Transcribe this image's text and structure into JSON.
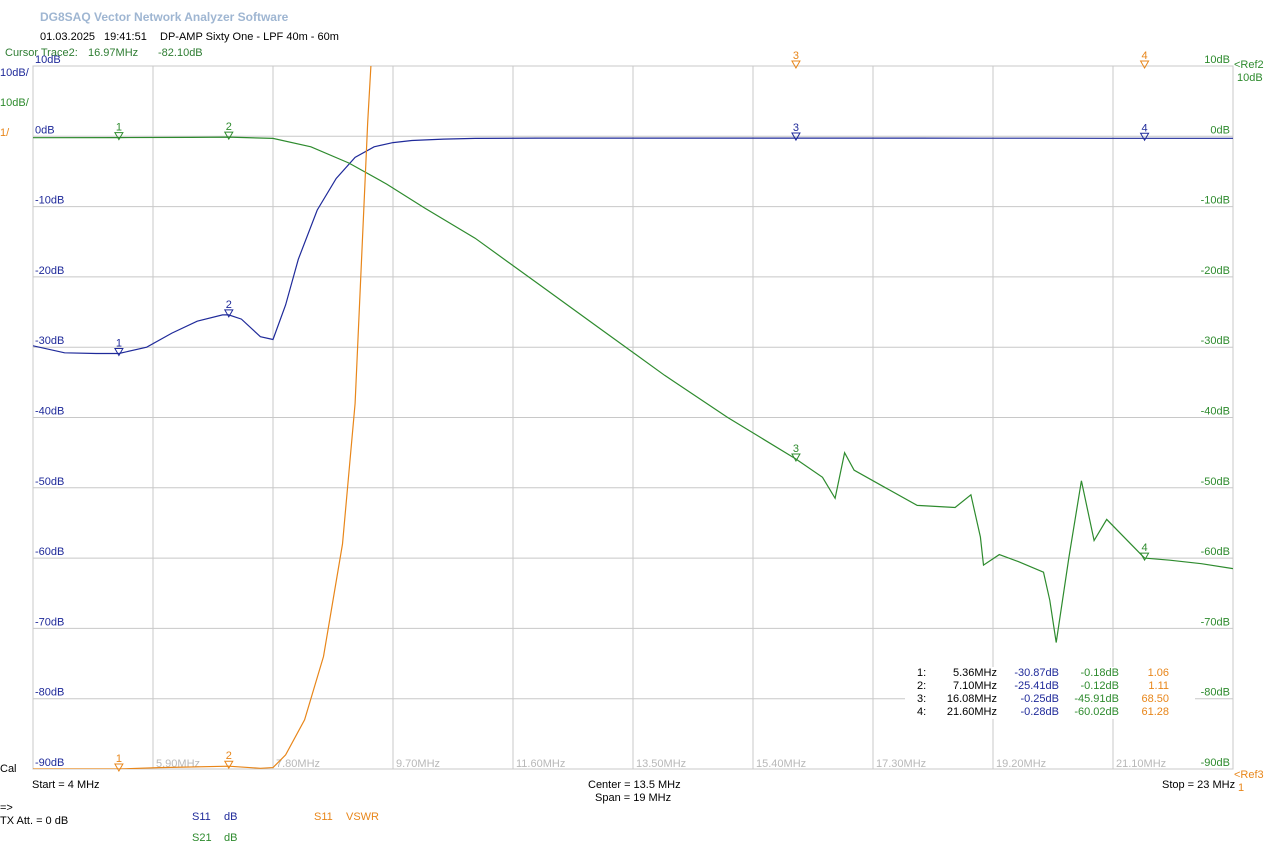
{
  "app": {
    "title": "DG8SAQ Vector Network Analyzer Software"
  },
  "header": {
    "date": "01.03.2025",
    "time": "19:41:51",
    "description": "DP-AMP Sixty One - LPF 40m - 60m"
  },
  "cursor": {
    "label": "Cursor Trace2:",
    "freq": "16.97MHz",
    "value": "-82.10dB"
  },
  "left_scale": {
    "s11_div": "10dB/",
    "s21_div": "10dB/",
    "vswr_div": "1/",
    "cal": "Cal"
  },
  "right_scale": {
    "ref2": "<Ref2",
    "ref2_div": "10dB",
    "ref3": "<Ref3",
    "ref3_val": "1"
  },
  "footer": {
    "start": "Start = 4 MHz",
    "center": "Center = 13.5 MHz",
    "span": "Span = 19 MHz",
    "stop": "Stop = 23 MHz",
    "arrow": "=>",
    "tx_att": "TX Att.  = 0 dB"
  },
  "legend": {
    "s11_name": "S11",
    "s11_fmt": "dB",
    "s21_name": "S21",
    "s21_fmt": "dB",
    "vswr_name": "S11",
    "vswr_fmt": "VSWR"
  },
  "colors": {
    "s11": "#1f2a9a",
    "s21": "#2e8b2e",
    "vswr": "#e8861a",
    "grid": "#c8c8c8"
  },
  "marker_table": [
    {
      "id": "1:",
      "freq": "5.36MHz",
      "s11": "-30.87dB",
      "s21": "-0.18dB",
      "vswr": "1.06"
    },
    {
      "id": "2:",
      "freq": "7.10MHz",
      "s11": "-25.41dB",
      "s21": "-0.12dB",
      "vswr": "1.11"
    },
    {
      "id": "3:",
      "freq": "16.08MHz",
      "s11": "-0.25dB",
      "s21": "-45.91dB",
      "vswr": "68.50"
    },
    {
      "id": "4:",
      "freq": "21.60MHz",
      "s11": "-0.28dB",
      "s21": "-60.02dB",
      "vswr": "61.28"
    }
  ],
  "chart_data": {
    "type": "line",
    "xlim": [
      4,
      23
    ],
    "ylim": [
      -90,
      10
    ],
    "x_tick_labels": [
      "5.90MHz",
      "7.80MHz",
      "9.70MHz",
      "11.60MHz",
      "13.50MHz",
      "15.40MHz",
      "17.30MHz",
      "19.20MHz",
      "21.10MHz"
    ],
    "x_ticks": [
      5.9,
      7.8,
      9.7,
      11.6,
      13.5,
      15.4,
      17.3,
      19.2,
      21.1
    ],
    "y_tick_labels": [
      "10dB",
      "0dB",
      "-10dB",
      "-20dB",
      "-30dB",
      "-40dB",
      "-50dB",
      "-60dB",
      "-70dB",
      "-80dB",
      "-90dB"
    ],
    "y_ticks": [
      10,
      0,
      -10,
      -20,
      -30,
      -40,
      -50,
      -60,
      -70,
      -80,
      -90
    ],
    "grid": true,
    "series": [
      {
        "name": "S11",
        "unit": "dB",
        "x": [
          4.0,
          4.5,
          5.0,
          5.36,
          5.8,
          6.2,
          6.6,
          7.0,
          7.1,
          7.3,
          7.6,
          7.8,
          8.0,
          8.2,
          8.5,
          8.8,
          9.1,
          9.4,
          9.7,
          10.0,
          10.5,
          11.0,
          12.0,
          13.0,
          14.0,
          15.0,
          16.08,
          17.0,
          18.0,
          19.0,
          20.0,
          21.0,
          21.6,
          22.0,
          23.0
        ],
        "y": [
          -29.8,
          -30.8,
          -30.9,
          -30.9,
          -30.0,
          -28.0,
          -26.3,
          -25.4,
          -25.4,
          -26.0,
          -28.5,
          -28.9,
          -24.0,
          -17.5,
          -10.5,
          -6.0,
          -3.0,
          -1.5,
          -0.9,
          -0.6,
          -0.4,
          -0.3,
          -0.25,
          -0.25,
          -0.25,
          -0.25,
          -0.25,
          -0.25,
          -0.26,
          -0.27,
          -0.27,
          -0.28,
          -0.28,
          -0.28,
          -0.28
        ]
      },
      {
        "name": "S21",
        "unit": "dB",
        "x": [
          4.0,
          5.36,
          6.5,
          7.1,
          7.8,
          8.4,
          9.0,
          9.6,
          10.2,
          11.0,
          12.0,
          13.0,
          14.0,
          15.0,
          16.08,
          16.5,
          16.7,
          16.85,
          17.0,
          17.5,
          18.0,
          18.6,
          18.85,
          19.0,
          19.05,
          19.3,
          19.6,
          20.0,
          20.1,
          20.2,
          20.4,
          20.6,
          20.8,
          21.0,
          21.6,
          22.0,
          22.5,
          23.0
        ],
        "y": [
          -0.2,
          -0.18,
          -0.15,
          -0.12,
          -0.3,
          -1.5,
          -3.8,
          -6.8,
          -10.2,
          -14.5,
          -21.0,
          -27.5,
          -34.0,
          -40.0,
          -45.91,
          -48.5,
          -51.5,
          -45.0,
          -47.5,
          -50.0,
          -52.5,
          -52.8,
          -51.0,
          -57.0,
          -61.0,
          -59.5,
          -60.5,
          -62.0,
          -66.0,
          -72.0,
          -60.0,
          -49.0,
          -57.5,
          -54.5,
          -60.0,
          -60.3,
          -60.8,
          -61.5
        ]
      },
      {
        "name": "S11",
        "unit": "VSWR",
        "x": [
          4.0,
          5.36,
          6.0,
          7.1,
          7.6,
          7.8,
          8.0,
          8.3,
          8.6,
          8.9,
          9.1,
          9.2,
          9.3,
          9.35
        ],
        "y": [
          -90.0,
          -90.0,
          -89.8,
          -89.6,
          -89.9,
          -89.8,
          -88.0,
          -83.0,
          -74.0,
          -58.0,
          -38.0,
          -18.0,
          2.0,
          10.0
        ]
      }
    ],
    "markers": [
      {
        "label": "1",
        "x": 5.36
      },
      {
        "label": "2",
        "x": 7.1
      },
      {
        "label": "3",
        "x": 16.08
      },
      {
        "label": "4",
        "x": 21.6
      }
    ]
  }
}
